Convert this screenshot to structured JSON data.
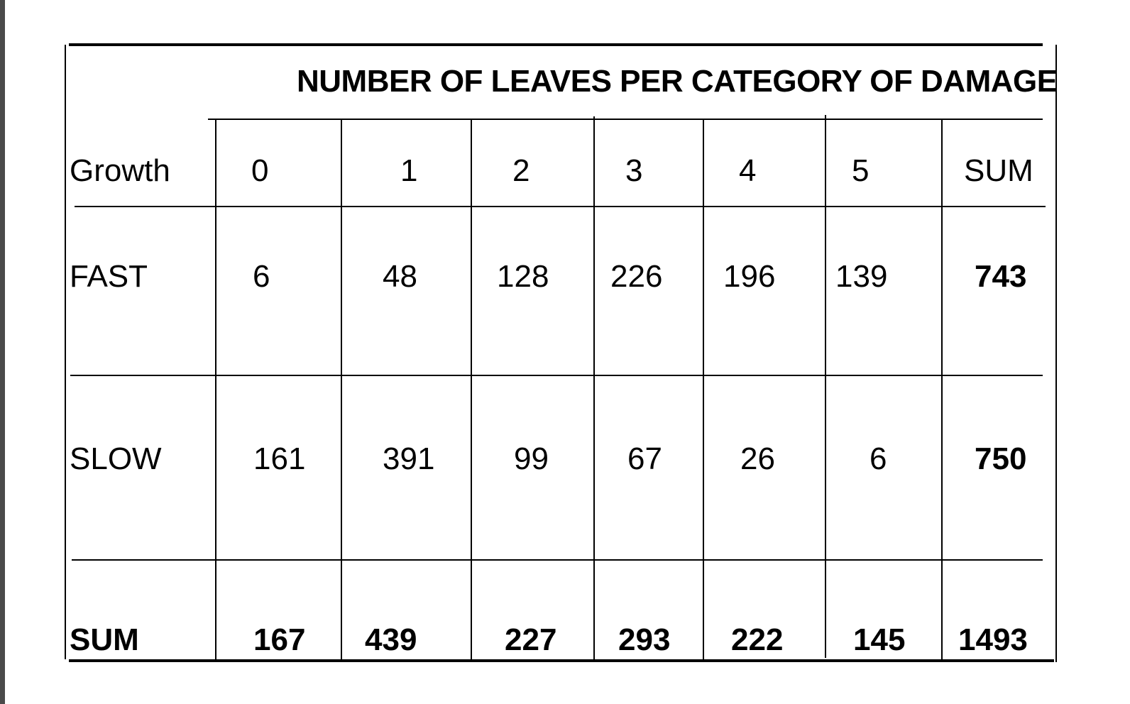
{
  "table": {
    "title": "NUMBER OF LEAVES PER CATEGORY OF DAMAGE",
    "row_header_label": "Growth",
    "column_headers": [
      "0",
      "1",
      "2",
      "3",
      "4",
      "5",
      "SUM"
    ],
    "rows": [
      {
        "label": "FAST",
        "values": [
          "6",
          "48",
          "128",
          "226",
          "196",
          "139",
          "743"
        ]
      },
      {
        "label": "SLOW",
        "values": [
          "161",
          "391",
          "99",
          "67",
          "26",
          "6",
          "750"
        ]
      },
      {
        "label": "SUM",
        "values": [
          "167",
          "439",
          "227",
          "293",
          "222",
          "145",
          "1493"
        ]
      }
    ]
  }
}
